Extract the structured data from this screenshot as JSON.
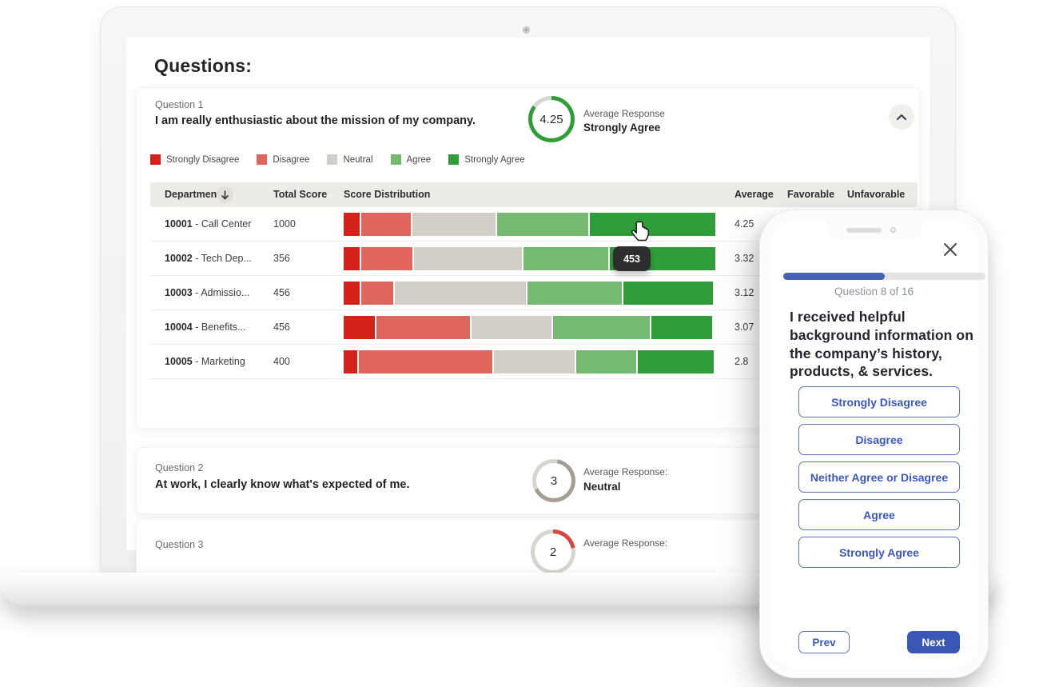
{
  "colors": {
    "scale": [
      "#d42119",
      "#e0655c",
      "#d2cec8",
      "#74ba71",
      "#2f9e39"
    ],
    "gauge_track": "#d8d4cf",
    "accent_blue": "#3a57b5"
  },
  "page": {
    "title": "Questions:"
  },
  "question1": {
    "label": "Question 1",
    "text": "I am really enthusiastic about the mission of my company.",
    "gauge": {
      "value": "4.25",
      "percent": 85,
      "from": 0,
      "color": "#2f9e39"
    },
    "avg_label": "Average Response",
    "avg_value": "Strongly Agree",
    "legend": [
      {
        "label": "Strongly Disagree"
      },
      {
        "label": "Disagree"
      },
      {
        "label": "Neutral"
      },
      {
        "label": "Agree"
      },
      {
        "label": "Strongly Agree"
      }
    ]
  },
  "table": {
    "headers": {
      "department": "Department",
      "total_score": "Total Score",
      "distribution": "Score Distribution",
      "average": "Average",
      "favorable": "Favorable",
      "unfavorable": "Unfavorable"
    },
    "rows": [
      {
        "id": "10001",
        "name": "- Call Center",
        "total": "1000",
        "average": "4.25",
        "segments": [
          20,
          62,
          104,
          114,
          157
        ]
      },
      {
        "id": "10002",
        "name": "- Tech Dep...",
        "total": "356",
        "average": "3.32",
        "segments": [
          20,
          64,
          135,
          106,
          132
        ]
      },
      {
        "id": "10003",
        "name": "- Admissio...",
        "total": "456",
        "average": "3.12",
        "segments": [
          20,
          40,
          164,
          118,
          112
        ]
      },
      {
        "id": "10004",
        "name": "- Benefits...",
        "total": "456",
        "average": "3.07",
        "segments": [
          39,
          117,
          100,
          121,
          76
        ]
      },
      {
        "id": "10005",
        "name": "- Marketing",
        "total": "400",
        "average": "2.8",
        "segments": [
          17,
          167,
          101,
          75,
          95
        ]
      }
    ],
    "tooltip_value": "453"
  },
  "question2": {
    "label": "Question 2",
    "text": "At work, I clearly know what's expected of me.",
    "gauge": {
      "value": "3",
      "percent": 65,
      "from": 10,
      "color": "#a59e95"
    },
    "avg_label": "Average Response:",
    "avg_value": "Neutral"
  },
  "question3": {
    "label": "Question 3",
    "gauge": {
      "value": "2",
      "percent": 22,
      "from": 0,
      "color": "#d8473e"
    },
    "avg_label": "Average Response:"
  },
  "phone": {
    "progress_percent": 50,
    "progress_label": "Question 8 of 16",
    "question": "I received helpful background information on the company’s history, products, & services.",
    "answers": [
      "Strongly Disagree",
      "Disagree",
      "Neither Agree or Disagree",
      "Agree",
      "Strongly Agree"
    ],
    "prev_label": "Prev",
    "next_label": "Next"
  }
}
